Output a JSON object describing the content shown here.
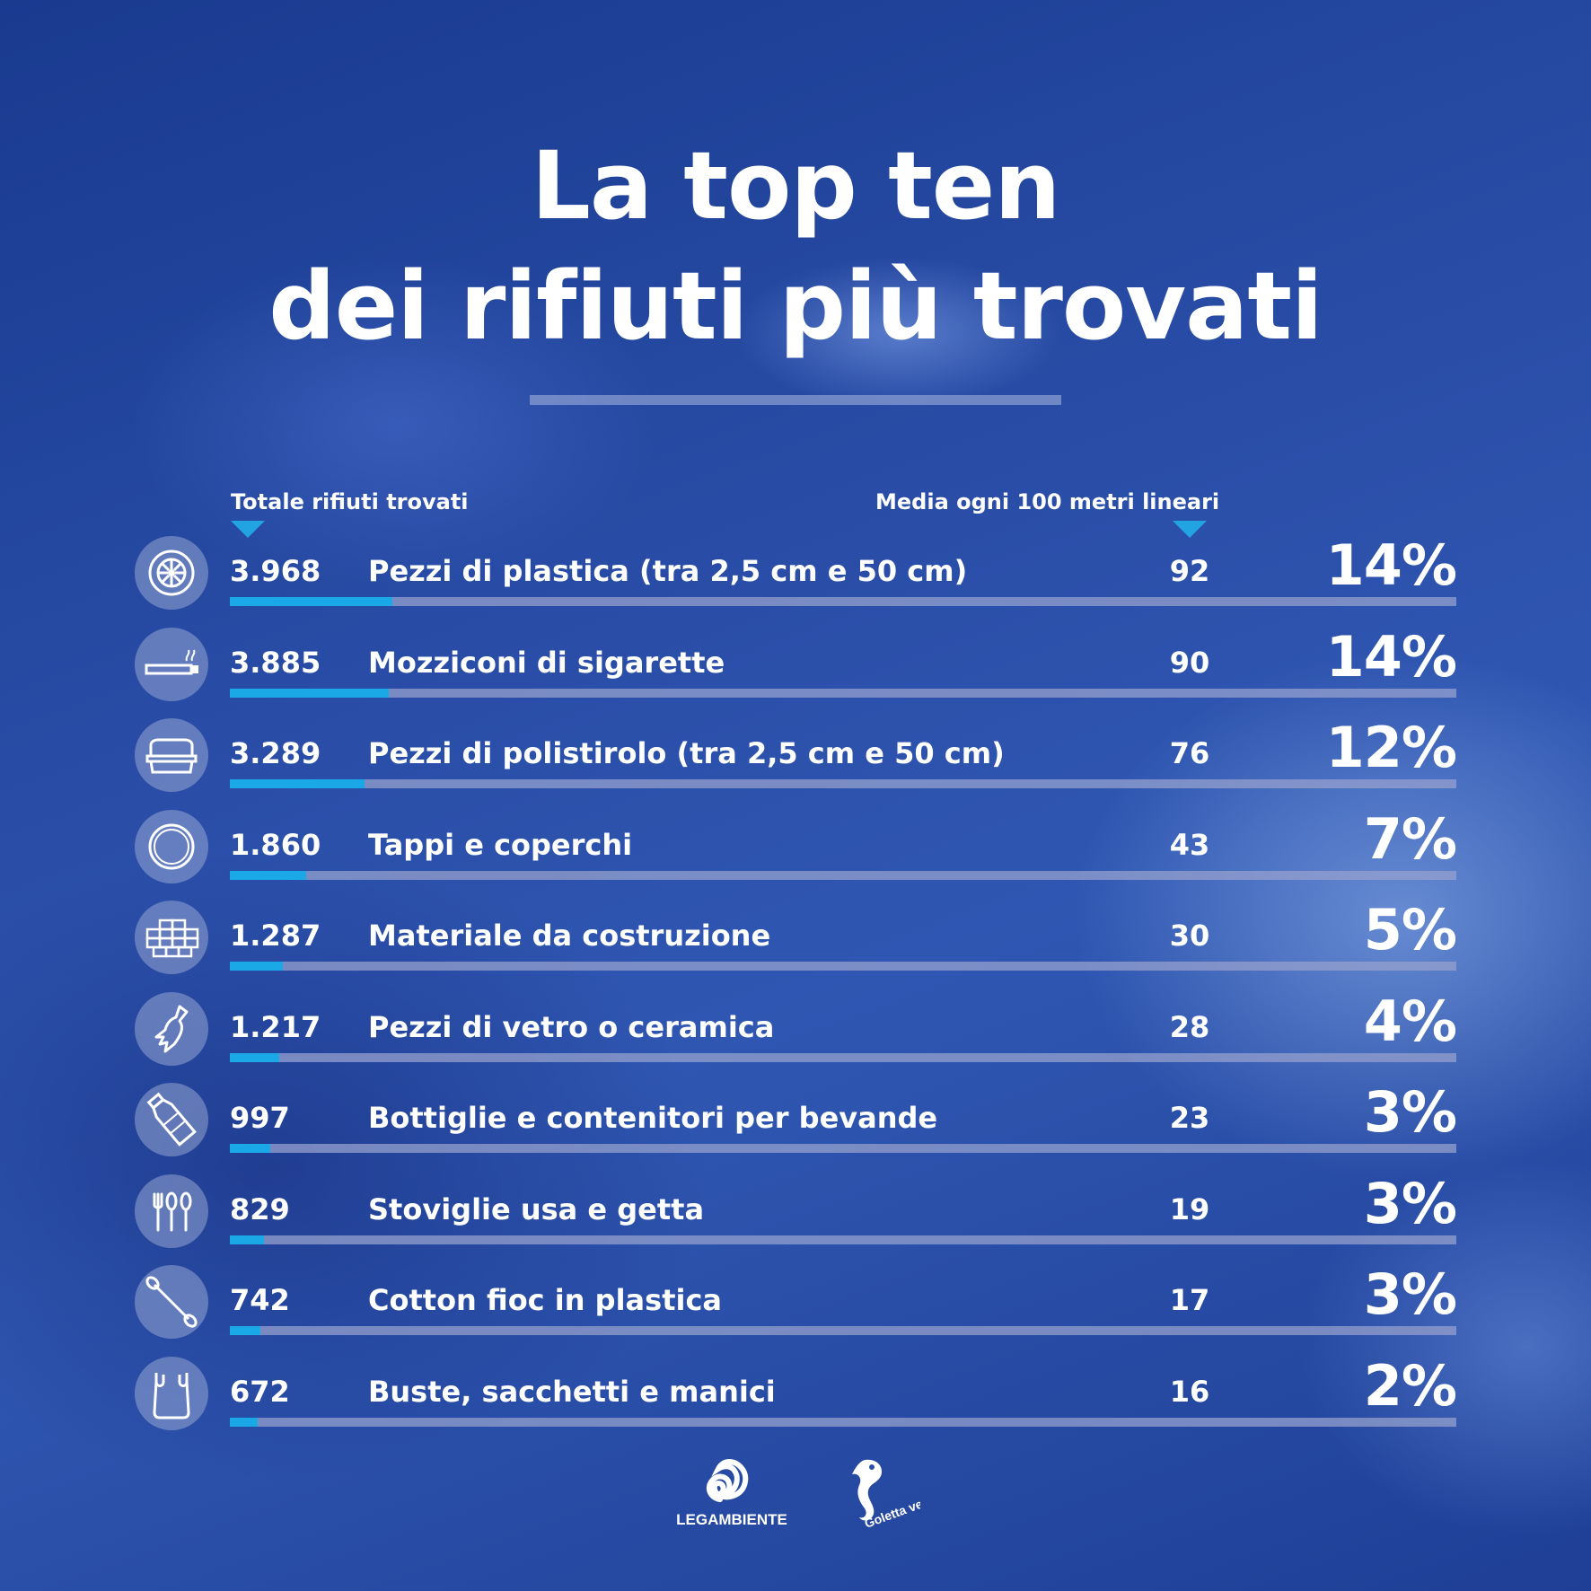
{
  "title": {
    "line1": "La top ten",
    "line2": "dei rifiuti più trovati"
  },
  "headers": {
    "total": "Totale rifiuti trovati",
    "average": "Media ogni 100 metri lineari"
  },
  "chart_data": {
    "type": "bar",
    "title": "La top ten dei rifiuti più trovati",
    "categories": [
      "Pezzi di plastica (tra 2,5 cm e 50 cm)",
      "Mozziconi di sigarette",
      "Pezzi di polistirolo (tra 2,5 cm e 50 cm)",
      "Tappi e coperchi",
      "Materiale da costruzione",
      "Pezzi di vetro o ceramica",
      "Bottiglie e contenitori per bevande",
      "Stoviglie usa e getta",
      "Cotton fioc in plastica",
      "Buste, sacchetti e manici"
    ],
    "series": [
      {
        "name": "Totale rifiuti trovati",
        "values": [
          3968,
          3885,
          3289,
          1860,
          1287,
          1217,
          997,
          829,
          742,
          672
        ]
      },
      {
        "name": "Media ogni 100 metri lineari",
        "values": [
          92,
          90,
          76,
          43,
          30,
          28,
          23,
          19,
          17,
          16
        ]
      }
    ],
    "percentages": [
      14,
      14,
      12,
      7,
      5,
      4,
      3,
      3,
      3,
      2
    ]
  },
  "rows": [
    {
      "icon": "tire-icon",
      "count": "3.968",
      "label": "Pezzi di plastica (tra 2,5 cm e 50 cm)",
      "avg": "92",
      "pct": "14%"
    },
    {
      "icon": "cigarette-icon",
      "count": "3.885",
      "label": "Mozziconi di sigarette",
      "avg": "90",
      "pct": "14%"
    },
    {
      "icon": "polystyrene-box-icon",
      "count": "3.289",
      "label": "Pezzi di polistirolo (tra 2,5 cm e 50 cm)",
      "avg": "76",
      "pct": "12%"
    },
    {
      "icon": "bottle-cap-icon",
      "count": "1.860",
      "label": "Tappi e coperchi",
      "avg": "43",
      "pct": "7%"
    },
    {
      "icon": "bricks-icon",
      "count": "1.287",
      "label": "Materiale da costruzione",
      "avg": "30",
      "pct": "5%"
    },
    {
      "icon": "broken-bottle-icon",
      "count": "1.217",
      "label": "Pezzi di vetro o ceramica",
      "avg": "28",
      "pct": "4%"
    },
    {
      "icon": "plastic-bottle-icon",
      "count": "997",
      "label": "Bottiglie e contenitori per bevande",
      "avg": "23",
      "pct": "3%"
    },
    {
      "icon": "cutlery-icon",
      "count": "829",
      "label": "Stoviglie usa e getta",
      "avg": "19",
      "pct": "3%"
    },
    {
      "icon": "cotton-swab-icon",
      "count": "742",
      "label": "Cotton fioc in plastica",
      "avg": "17",
      "pct": "3%"
    },
    {
      "icon": "plastic-bag-icon",
      "count": "672",
      "label": "Buste, sacchetti e manici",
      "avg": "16",
      "pct": "2%"
    }
  ],
  "logos": {
    "legambiente": "LEGAMBIENTE",
    "goletta": "Goletta verde Legambiente"
  },
  "colors": {
    "accent": "#1aa8e6",
    "track": "#96a0cd",
    "text": "#ffffff"
  }
}
